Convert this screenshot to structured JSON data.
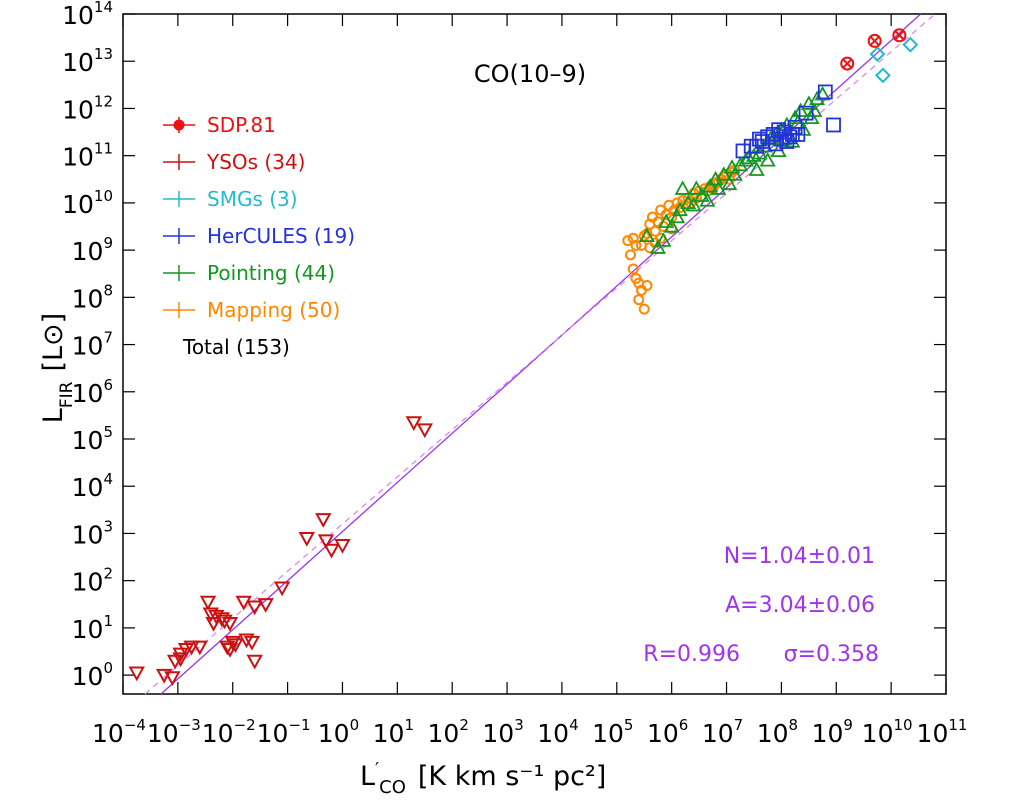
{
  "chart_data": {
    "type": "scatter",
    "title": "CO(10–9)",
    "xlabel": {
      "main": "L",
      "prime": "′",
      "sub": "CO",
      "unit": "[K km s⁻¹ pc²]"
    },
    "ylabel": {
      "main": "L",
      "sub": "FIR",
      "unit": "[L⊙]"
    },
    "x_log_range": [
      -4,
      11
    ],
    "y_log_range": [
      -0.4,
      14
    ],
    "x_ticks": [
      {
        "base": "10",
        "exp": "−4"
      },
      {
        "base": "10",
        "exp": "−3"
      },
      {
        "base": "10",
        "exp": "−2"
      },
      {
        "base": "10",
        "exp": "−1"
      },
      {
        "base": "10",
        "exp": "0"
      },
      {
        "base": "10",
        "exp": "1"
      },
      {
        "base": "10",
        "exp": "2"
      },
      {
        "base": "10",
        "exp": "3"
      },
      {
        "base": "10",
        "exp": "4"
      },
      {
        "base": "10",
        "exp": "5"
      },
      {
        "base": "10",
        "exp": "6"
      },
      {
        "base": "10",
        "exp": "7"
      },
      {
        "base": "10",
        "exp": "8"
      },
      {
        "base": "10",
        "exp": "9"
      },
      {
        "base": "10",
        "exp": "10"
      },
      {
        "base": "10",
        "exp": "11"
      }
    ],
    "y_ticks": [
      {
        "base": "10",
        "exp": "0"
      },
      {
        "base": "10",
        "exp": "1"
      },
      {
        "base": "10",
        "exp": "2"
      },
      {
        "base": "10",
        "exp": "3"
      },
      {
        "base": "10",
        "exp": "4"
      },
      {
        "base": "10",
        "exp": "5"
      },
      {
        "base": "10",
        "exp": "6"
      },
      {
        "base": "10",
        "exp": "7"
      },
      {
        "base": "10",
        "exp": "8"
      },
      {
        "base": "10",
        "exp": "9"
      },
      {
        "base": "10",
        "exp": "10"
      },
      {
        "base": "10",
        "exp": "11"
      },
      {
        "base": "10",
        "exp": "12"
      },
      {
        "base": "10",
        "exp": "13"
      },
      {
        "base": "10",
        "exp": "14"
      }
    ],
    "fit_lines": [
      {
        "style": "solid",
        "color": "#9933ee",
        "slope": 1.04,
        "intercept": 3.04
      },
      {
        "style": "dashed",
        "color": "#dd88ee",
        "slope": 1.0,
        "intercept": 3.2
      }
    ],
    "legend": [
      {
        "label": "SDP.81",
        "color": "#ee1111",
        "marker": "circle-x"
      },
      {
        "label": "YSOs (34)",
        "color": "#cc1111",
        "marker": "down-triangle"
      },
      {
        "label": "SMGs (3)",
        "color": "#22bbcc",
        "marker": "diamond"
      },
      {
        "label": "HerCULES (19)",
        "color": "#2233dd",
        "marker": "square"
      },
      {
        "label": "Pointing (44)",
        "color": "#119922",
        "marker": "up-triangle"
      },
      {
        "label": "Mapping (50)",
        "color": "#ff8800",
        "marker": "circle"
      },
      {
        "label": "Total (153)",
        "color": "#000000",
        "marker": "none"
      }
    ],
    "stats": {
      "N": "N=1.04±0.01",
      "A": "A=3.04±0.06",
      "R": "R=0.996",
      "sigma": "σ=0.358",
      "color": "#a033ee"
    },
    "series": [
      {
        "name": "SDP.81",
        "marker": "circle-x",
        "color": "#ee1111",
        "points": [
          [
            9.2,
            12.95
          ],
          [
            9.7,
            13.43
          ],
          [
            10.15,
            13.55
          ]
        ]
      },
      {
        "name": "YSOs (34)",
        "marker": "down-triangle",
        "color": "#cc1111",
        "points": [
          [
            -3.75,
            0.05
          ],
          [
            -3.25,
            0.0
          ],
          [
            -3.1,
            -0.05
          ],
          [
            -2.95,
            0.35
          ],
          [
            -2.85,
            0.55
          ],
          [
            -3.05,
            0.3
          ],
          [
            -2.95,
            0.45
          ],
          [
            -2.75,
            0.6
          ],
          [
            -2.6,
            0.6
          ],
          [
            -2.45,
            1.55
          ],
          [
            -2.4,
            1.3
          ],
          [
            -2.35,
            1.1
          ],
          [
            -2.3,
            1.25
          ],
          [
            -2.2,
            1.2
          ],
          [
            -2.1,
            0.6
          ],
          [
            -2.05,
            0.55
          ],
          [
            -2.15,
            1.15
          ],
          [
            -2.0,
            0.7
          ],
          [
            -2.05,
            1.1
          ],
          [
            -1.95,
            0.65
          ],
          [
            -1.75,
            0.75
          ],
          [
            -1.65,
            0.7
          ],
          [
            -1.6,
            0.3
          ],
          [
            -1.8,
            1.55
          ],
          [
            -1.6,
            1.45
          ],
          [
            -1.4,
            1.5
          ],
          [
            -1.1,
            1.85
          ],
          [
            -0.65,
            2.9
          ],
          [
            -0.35,
            3.3
          ],
          [
            -0.3,
            2.85
          ],
          [
            -0.2,
            2.65
          ],
          [
            0.0,
            2.75
          ],
          [
            1.3,
            5.35
          ],
          [
            1.5,
            5.2
          ]
        ]
      },
      {
        "name": "SMGs (3)",
        "marker": "diamond",
        "color": "#22bbcc",
        "points": [
          [
            9.75,
            13.15
          ],
          [
            9.85,
            12.7
          ],
          [
            10.35,
            13.35
          ]
        ]
      },
      {
        "name": "HerCULES (19)",
        "marker": "square",
        "color": "#2233dd",
        "points": [
          [
            7.3,
            11.1
          ],
          [
            7.45,
            11.2
          ],
          [
            7.55,
            11.2
          ],
          [
            7.6,
            11.35
          ],
          [
            7.65,
            11.3
          ],
          [
            7.75,
            11.4
          ],
          [
            7.85,
            11.45
          ],
          [
            7.9,
            11.25
          ],
          [
            7.95,
            11.55
          ],
          [
            8.0,
            11.35
          ],
          [
            8.05,
            11.5
          ],
          [
            8.15,
            11.4
          ],
          [
            8.1,
            11.3
          ],
          [
            8.2,
            11.45
          ],
          [
            8.3,
            11.45
          ],
          [
            8.25,
            11.6
          ],
          [
            8.45,
            11.9
          ],
          [
            8.8,
            12.35
          ],
          [
            8.95,
            11.65
          ]
        ]
      },
      {
        "name": "Pointing (44)",
        "marker": "up-triangle",
        "color": "#119922",
        "points": [
          [
            5.75,
            9.05
          ],
          [
            5.85,
            9.2
          ],
          [
            6.0,
            9.5
          ],
          [
            6.1,
            9.7
          ],
          [
            6.2,
            10.3
          ],
          [
            6.3,
            10.0
          ],
          [
            6.45,
            10.3
          ],
          [
            6.55,
            10.15
          ],
          [
            6.7,
            10.35
          ],
          [
            6.8,
            10.5
          ],
          [
            6.95,
            10.6
          ],
          [
            7.1,
            10.75
          ],
          [
            7.25,
            10.8
          ],
          [
            7.35,
            10.9
          ],
          [
            7.5,
            11.0
          ],
          [
            7.6,
            11.05
          ],
          [
            7.7,
            11.2
          ],
          [
            7.8,
            11.35
          ],
          [
            7.9,
            11.45
          ],
          [
            8.0,
            11.55
          ],
          [
            8.1,
            11.65
          ],
          [
            8.25,
            11.8
          ],
          [
            8.35,
            11.95
          ],
          [
            8.5,
            12.1
          ],
          [
            8.65,
            12.2
          ],
          [
            8.75,
            12.3
          ],
          [
            7.05,
            10.4
          ],
          [
            7.4,
            10.95
          ],
          [
            7.55,
            10.7
          ],
          [
            7.75,
            10.9
          ],
          [
            7.95,
            11.1
          ],
          [
            8.2,
            11.3
          ],
          [
            8.4,
            11.55
          ],
          [
            8.55,
            11.8
          ],
          [
            6.4,
            9.95
          ],
          [
            6.65,
            10.05
          ],
          [
            6.85,
            10.3
          ],
          [
            7.15,
            10.6
          ],
          [
            8.05,
            11.35
          ],
          [
            8.3,
            11.7
          ],
          [
            8.6,
            11.95
          ],
          [
            5.55,
            9.3
          ],
          [
            5.9,
            9.6
          ],
          [
            6.15,
            9.85
          ]
        ]
      },
      {
        "name": "Mapping (50)",
        "marker": "circle",
        "color": "#ff8800",
        "points": [
          [
            5.25,
            8.9
          ],
          [
            5.3,
            8.6
          ],
          [
            5.35,
            8.4
          ],
          [
            5.4,
            8.3
          ],
          [
            5.45,
            8.15
          ],
          [
            5.4,
            7.95
          ],
          [
            5.5,
            7.75
          ],
          [
            5.55,
            9.35
          ],
          [
            5.6,
            9.55
          ],
          [
            5.65,
            9.7
          ],
          [
            5.7,
            9.4
          ],
          [
            5.75,
            9.6
          ],
          [
            5.8,
            9.85
          ],
          [
            5.85,
            9.5
          ],
          [
            5.9,
            9.75
          ],
          [
            5.95,
            9.95
          ],
          [
            6.0,
            9.7
          ],
          [
            6.05,
            9.85
          ],
          [
            6.1,
            10.0
          ],
          [
            6.15,
            9.9
          ],
          [
            6.2,
            10.05
          ],
          [
            6.25,
            9.95
          ],
          [
            6.3,
            10.1
          ],
          [
            6.35,
            10.0
          ],
          [
            6.4,
            10.2
          ],
          [
            6.45,
            10.1
          ],
          [
            6.5,
            10.25
          ],
          [
            6.55,
            10.15
          ],
          [
            6.6,
            10.3
          ],
          [
            6.65,
            10.25
          ],
          [
            6.7,
            10.35
          ],
          [
            6.75,
            10.3
          ],
          [
            6.8,
            10.4
          ],
          [
            6.85,
            10.45
          ],
          [
            6.9,
            10.5
          ],
          [
            6.95,
            10.55
          ],
          [
            7.0,
            10.6
          ],
          [
            7.05,
            10.5
          ],
          [
            7.1,
            10.65
          ],
          [
            7.15,
            10.7
          ],
          [
            5.3,
            9.25
          ],
          [
            5.45,
            9.1
          ],
          [
            5.5,
            9.3
          ],
          [
            5.6,
            9.05
          ],
          [
            5.7,
            9.15
          ],
          [
            5.2,
            9.2
          ],
          [
            5.35,
            9.1
          ],
          [
            5.8,
            9.25
          ],
          [
            6.0,
            9.45
          ],
          [
            5.55,
            8.25
          ]
        ]
      }
    ]
  }
}
